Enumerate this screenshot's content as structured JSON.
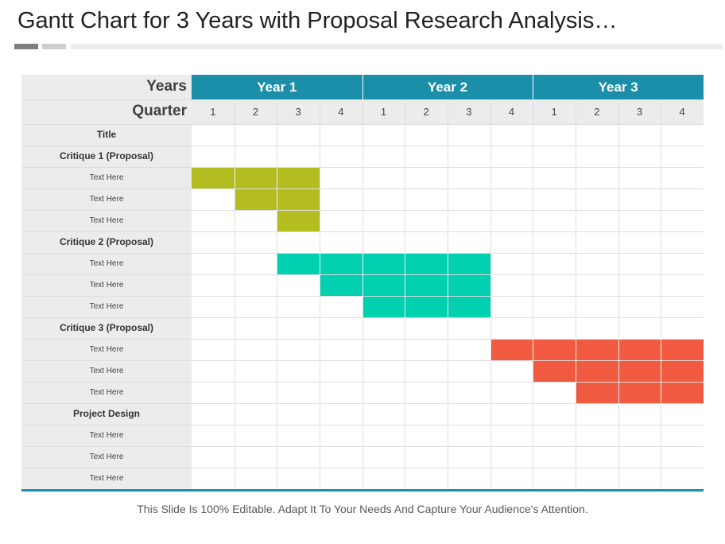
{
  "title": "Gantt Chart for 3 Years with Proposal Research Analysis…",
  "footer": "This Slide Is 100% Editable. Adapt It To Your Needs And Capture Your Audience's Attention.",
  "colors": {
    "header": "#1b8eaa",
    "critique1": "#b3bd1f",
    "critique2": "#00cfb0",
    "critique3": "#f05a40"
  },
  "chart_data": {
    "type": "gantt",
    "header": {
      "years_label": "Years",
      "quarter_label": "Quarter"
    },
    "years": [
      "Year 1",
      "Year 2",
      "Year 3"
    ],
    "quarters": [
      "1",
      "2",
      "3",
      "4",
      "1",
      "2",
      "3",
      "4",
      "1",
      "2",
      "3",
      "4"
    ],
    "rows": [
      {
        "label": "Title",
        "kind": "group"
      },
      {
        "label": "Critique 1 (Proposal)",
        "kind": "group"
      },
      {
        "label": "Text Here",
        "kind": "item",
        "start": 0,
        "end": 3,
        "color": "#b3bd1f"
      },
      {
        "label": "Text Here",
        "kind": "item",
        "start": 1,
        "end": 3,
        "color": "#b3bd1f"
      },
      {
        "label": "Text Here",
        "kind": "item",
        "start": 2,
        "end": 3,
        "color": "#b3bd1f"
      },
      {
        "label": "Critique 2 (Proposal)",
        "kind": "group"
      },
      {
        "label": "Text Here",
        "kind": "item",
        "start": 2,
        "end": 7,
        "color": "#00cfb0"
      },
      {
        "label": "Text Here",
        "kind": "item",
        "start": 3,
        "end": 7,
        "color": "#00cfb0"
      },
      {
        "label": "Text Here",
        "kind": "item",
        "start": 4,
        "end": 7,
        "color": "#00cfb0"
      },
      {
        "label": "Critique 3 (Proposal)",
        "kind": "group"
      },
      {
        "label": "Text Here",
        "kind": "item",
        "start": 7,
        "end": 12,
        "color": "#f05a40"
      },
      {
        "label": "Text Here",
        "kind": "item",
        "start": 8,
        "end": 12,
        "color": "#f05a40"
      },
      {
        "label": "Text Here",
        "kind": "item",
        "start": 9,
        "end": 12,
        "color": "#f05a40"
      },
      {
        "label": "Project Design",
        "kind": "group"
      },
      {
        "label": "Text Here",
        "kind": "item"
      },
      {
        "label": "Text Here",
        "kind": "item"
      },
      {
        "label": "Text Here",
        "kind": "item"
      }
    ]
  }
}
